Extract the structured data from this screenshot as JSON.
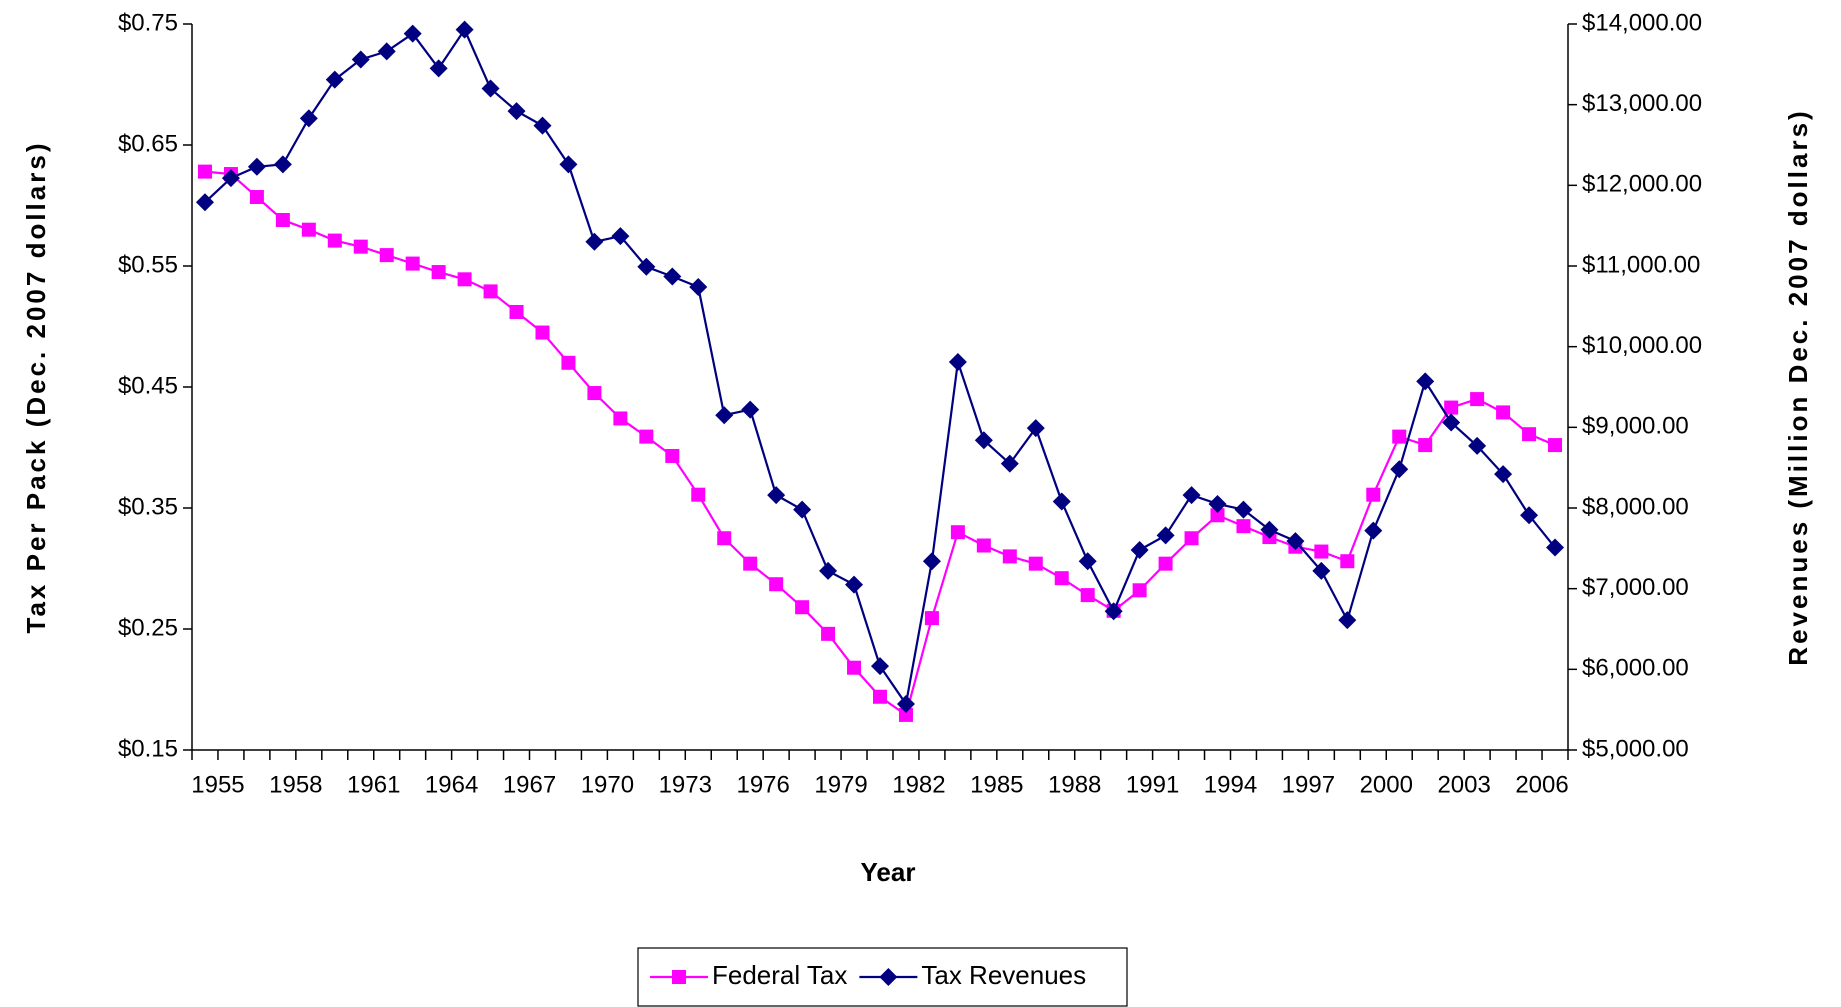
{
  "chart_data": {
    "type": "line",
    "x_label": "Year",
    "y_label": "Tax Per Pack (Dec. 2007 dollars)",
    "y2_label": "Revenues (Million Dec. 2007 dollars)",
    "categories": [
      "1955",
      null,
      null,
      "1958",
      null,
      null,
      "1961",
      null,
      null,
      "1964",
      null,
      null,
      "1967",
      null,
      null,
      "1970",
      null,
      null,
      "1973",
      null,
      null,
      "1976",
      null,
      null,
      "1979",
      null,
      null,
      "1982",
      null,
      null,
      "1985",
      null,
      null,
      "1988",
      null,
      null,
      "1991",
      null,
      null,
      "1994",
      null,
      null,
      "1997",
      null,
      null,
      "2000",
      null,
      null,
      "2003",
      null,
      null,
      "2006",
      null
    ],
    "ylim": [
      0.15,
      0.75
    ],
    "yticks": [
      {
        "value": 0.15,
        "label": "$0.15"
      },
      {
        "value": 0.25,
        "label": "$0.25"
      },
      {
        "value": 0.35,
        "label": "$0.35"
      },
      {
        "value": 0.45,
        "label": "$0.45"
      },
      {
        "value": 0.55,
        "label": "$0.55"
      },
      {
        "value": 0.65,
        "label": "$0.65"
      },
      {
        "value": 0.75,
        "label": "$0.75"
      }
    ],
    "y2lim": [
      5000,
      14000
    ],
    "y2ticks": [
      {
        "value": 5000,
        "label": "$5,000.00"
      },
      {
        "value": 6000,
        "label": "$6,000.00"
      },
      {
        "value": 7000,
        "label": "$7,000.00"
      },
      {
        "value": 8000,
        "label": "$8,000.00"
      },
      {
        "value": 9000,
        "label": "$9,000.00"
      },
      {
        "value": 10000,
        "label": "$10,000.00"
      },
      {
        "value": 11000,
        "label": "$11,000.00"
      },
      {
        "value": 12000,
        "label": "$12,000.00"
      },
      {
        "value": 13000,
        "label": "$13,000.00"
      },
      {
        "value": 14000,
        "label": "$14,000.00"
      }
    ],
    "grid": false,
    "legend": "bottom",
    "series": [
      {
        "name": "Federal Tax",
        "color": "#ff00ff",
        "marker": "square",
        "values": [
          0.628,
          0.626,
          0.607,
          0.588,
          0.58,
          0.571,
          0.566,
          0.559,
          0.552,
          0.545,
          0.539,
          0.529,
          0.512,
          0.495,
          0.47,
          0.445,
          0.424,
          0.409,
          0.393,
          0.361,
          0.325,
          0.304,
          0.287,
          0.268,
          0.246,
          0.218,
          0.194,
          0.179,
          0.259,
          0.33,
          0.319,
          0.31,
          0.304,
          0.292,
          0.278,
          0.265,
          0.282,
          0.304,
          0.325,
          0.344,
          0.335,
          0.326,
          0.318,
          0.314,
          0.306,
          0.361,
          0.409,
          0.402,
          0.433,
          0.44,
          0.429,
          0.411,
          0.402
        ]
      },
      {
        "name": "Tax Revenues",
        "color": "#000080",
        "marker": "diamond",
        "axis": "y2",
        "values": [
          11790,
          12090,
          12230,
          12260,
          12830,
          13310,
          13560,
          13660,
          13880,
          13450,
          13930,
          13200,
          12920,
          12740,
          12260,
          11300,
          11370,
          10990,
          10870,
          10740,
          9150,
          9220,
          8160,
          7980,
          7220,
          7050,
          6040,
          5570,
          7340,
          9810,
          8840,
          8550,
          8990,
          8080,
          7340,
          6720,
          7480,
          7660,
          8160,
          8050,
          7980,
          7730,
          7590,
          7220,
          6610,
          7720,
          8480,
          9570,
          9060,
          8770,
          8420,
          7910,
          7510
        ]
      }
    ]
  }
}
